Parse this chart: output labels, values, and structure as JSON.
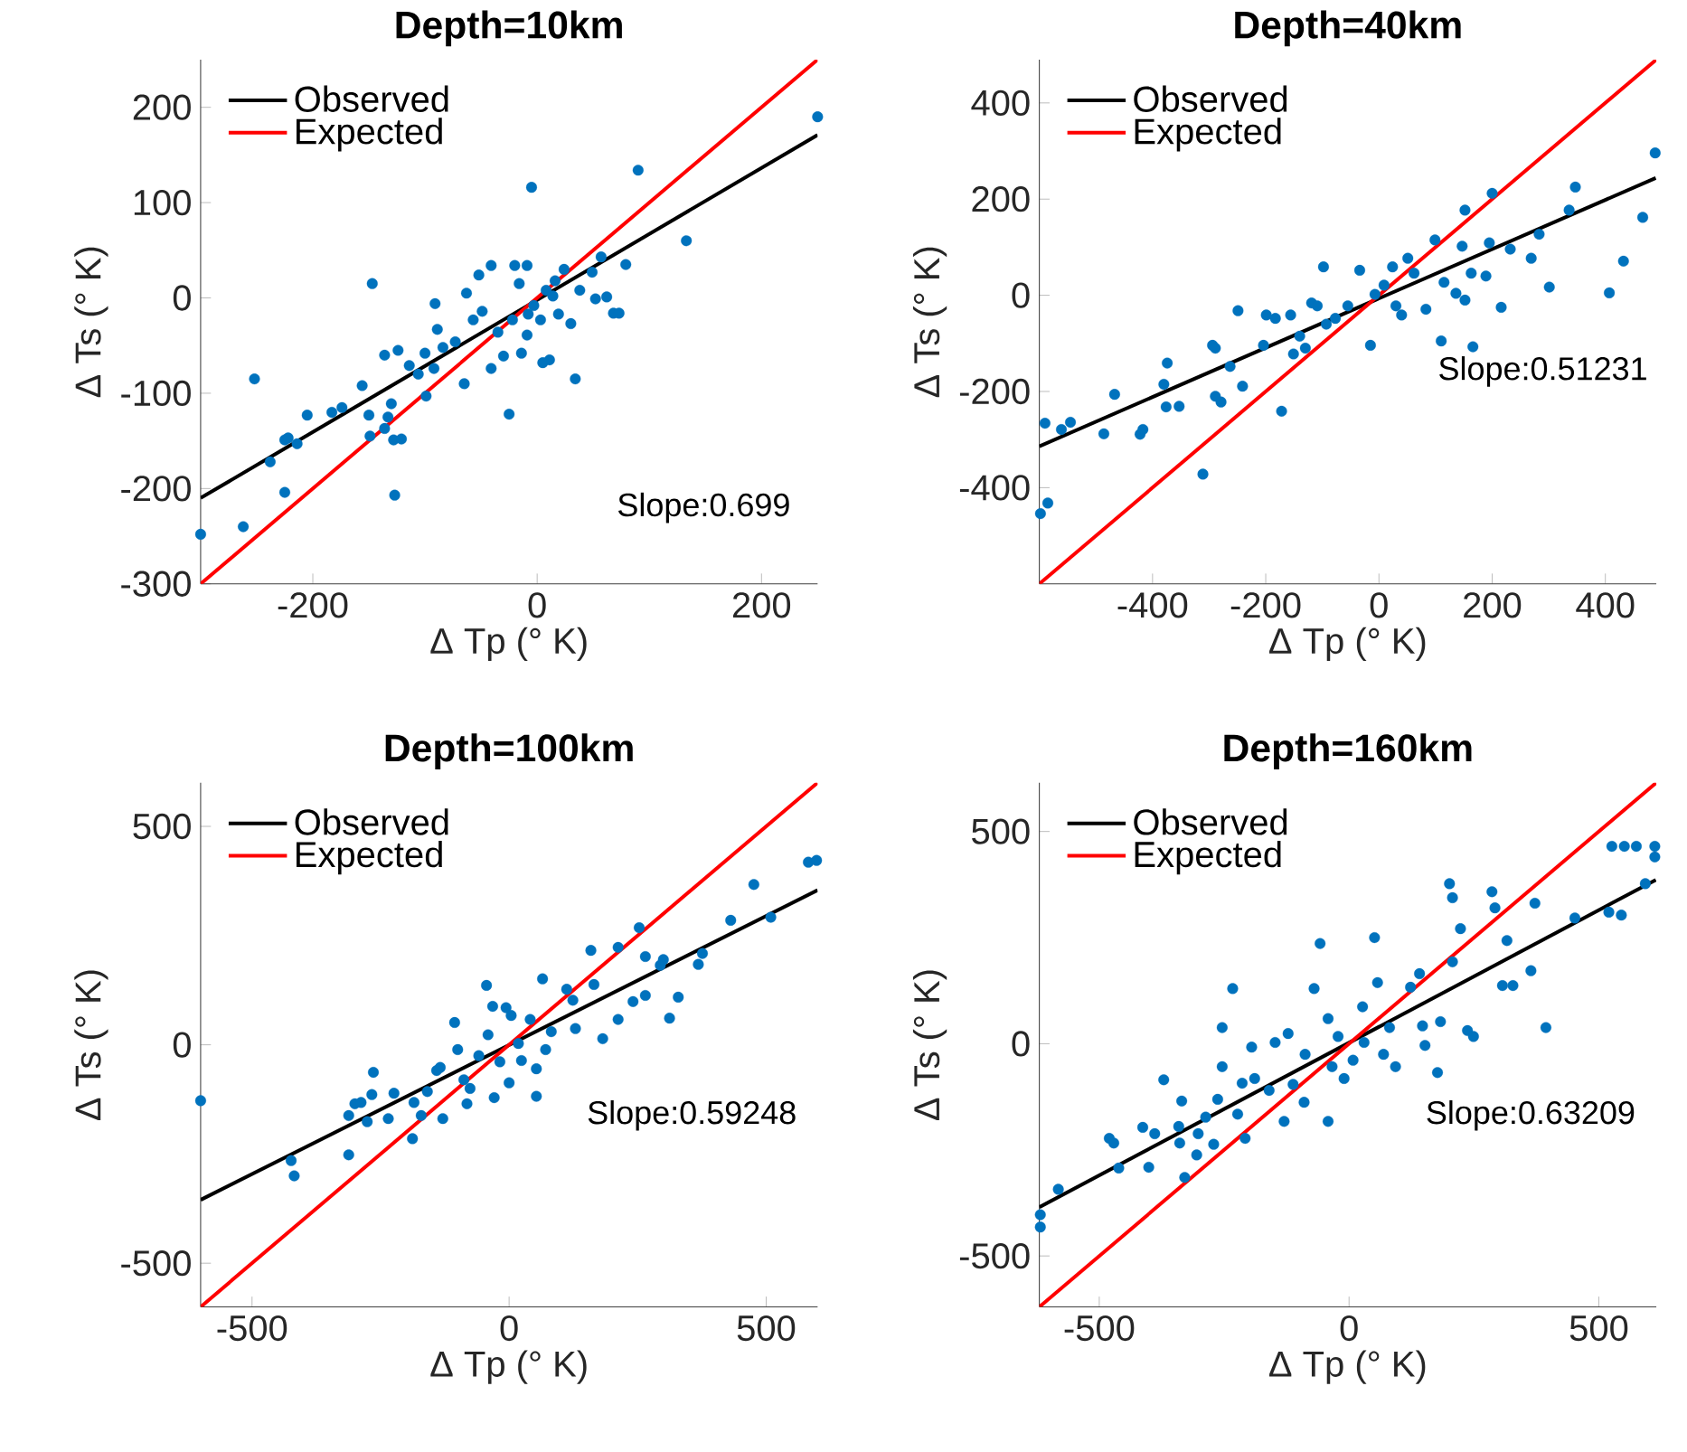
{
  "chart_data": [
    {
      "type": "scatter",
      "title": "Depth=10km",
      "xlabel": "Δ Tp (° K)",
      "ylabel": "Δ Ts (° K)",
      "xlim": [
        -300,
        250
      ],
      "ylim": [
        -300,
        250
      ],
      "xticks": [
        -200,
        0,
        200
      ],
      "yticks": [
        -300,
        -200,
        -100,
        0,
        100,
        200
      ],
      "legend": "top left",
      "annotations": [
        "Slope:0.699"
      ],
      "series": [
        {
          "marker": "circle",
          "color": "#0072bd",
          "x": [
            -300,
            -262,
            -252,
            -238,
            -225,
            -222,
            -214,
            -225,
            -205,
            -183,
            -174,
            -156,
            -150,
            -147,
            -136,
            -130,
            -133,
            -136,
            -149,
            -128,
            -121,
            -127,
            -124,
            -114,
            -106,
            -99,
            -100,
            -92,
            -91,
            -89,
            -84,
            -73,
            -65,
            -63,
            -57,
            -52,
            -49,
            -41,
            -41,
            -35,
            -30,
            -25,
            -22,
            -20,
            -16,
            -14,
            -9,
            -9,
            -5,
            -3,
            3,
            5,
            11,
            14,
            19,
            24,
            30,
            34,
            38,
            49,
            52,
            57,
            62,
            68,
            73,
            79,
            90,
            133,
            250,
            8,
            16,
            -8
          ],
          "values": [
            -248,
            -240,
            -85,
            -172,
            -149,
            -147,
            -153,
            -204,
            -123,
            -120,
            -115,
            -92,
            -123,
            15,
            -60,
            -111,
            -125,
            -137,
            -145,
            -149,
            -148,
            -207,
            -55,
            -71,
            -80,
            -103,
            -58,
            -74,
            -6,
            -33,
            -52,
            -46,
            -90,
            5,
            -23,
            24,
            -14,
            34,
            -74,
            -36,
            -61,
            -122,
            -23,
            34,
            15,
            -58,
            34,
            -39,
            116,
            -8,
            -23,
            -68,
            -65,
            2,
            -17,
            30,
            -27,
            -85,
            8,
            27,
            -1,
            43,
            1,
            -16,
            -16,
            35,
            134,
            60,
            190,
            8,
            18,
            -17
          ]
        },
        {
          "name": "Observed",
          "type": "line",
          "marker": "none",
          "color": "#000000",
          "x": [
            -300,
            250
          ],
          "values": [
            -210,
            171
          ]
        },
        {
          "name": "Expected",
          "type": "line",
          "marker": "none",
          "color": "#ff0000",
          "x": [
            -300,
            250
          ],
          "values": [
            -300,
            250
          ]
        }
      ]
    },
    {
      "type": "scatter",
      "title": "Depth=40km",
      "xlabel": "Δ Tp (° K)",
      "ylabel": "Δ Ts (° K)",
      "xlim": [
        -600,
        490
      ],
      "ylim": [
        -600,
        490
      ],
      "xticks": [
        -400,
        -200,
        0,
        200,
        400
      ],
      "yticks": [
        -400,
        -200,
        0,
        200,
        400
      ],
      "legend": "top left",
      "annotations": [
        "Slope:0.51231"
      ],
      "series": [
        {
          "marker": "circle",
          "color": "#0072bd",
          "x": [
            -598,
            -585,
            -590,
            -561,
            -545,
            -486,
            -467,
            -422,
            -417,
            -380,
            -374,
            -376,
            -353,
            -311,
            -294,
            -289,
            -289,
            -279,
            -263,
            -241,
            -249,
            -204,
            -199,
            -183,
            -172,
            -156,
            -151,
            -140,
            -130,
            -119,
            -109,
            -98,
            -93,
            -77,
            -55,
            -34,
            -15,
            -7,
            9,
            24,
            30,
            40,
            51,
            62,
            83,
            99,
            110,
            115,
            136,
            152,
            147,
            152,
            163,
            166,
            189,
            195,
            200,
            216,
            232,
            269,
            283,
            301,
            336,
            347,
            407,
            432,
            466,
            488
          ],
          "values": [
            -454,
            -432,
            -266,
            -279,
            -264,
            -288,
            -206,
            -289,
            -279,
            -185,
            -141,
            -232,
            -231,
            -372,
            -104,
            -110,
            -210,
            -222,
            -148,
            -189,
            -32,
            -104,
            -41,
            -48,
            -241,
            -41,
            -122,
            -85,
            -110,
            -16,
            -22,
            59,
            -60,
            -48,
            -22,
            52,
            -104,
            2,
            21,
            59,
            -22,
            -41,
            77,
            46,
            -29,
            115,
            -95,
            27,
            4,
            -10,
            102,
            177,
            46,
            -107,
            40,
            109,
            212,
            -25,
            96,
            77,
            127,
            17,
            177,
            225,
            5,
            71,
            162,
            296
          ]
        },
        {
          "name": "Observed",
          "type": "line",
          "marker": "none",
          "color": "#000000",
          "x": [
            -600,
            489
          ],
          "values": [
            -314,
            244
          ]
        },
        {
          "name": "Expected",
          "type": "line",
          "marker": "none",
          "color": "#ff0000",
          "x": [
            -600,
            490
          ],
          "values": [
            -600,
            490
          ]
        }
      ]
    },
    {
      "type": "scatter",
      "title": "Depth=100km",
      "xlabel": "Δ Tp (° K)",
      "ylabel": "Δ Ts (° K)",
      "xlim": [
        -600,
        600
      ],
      "ylim": [
        -600,
        600
      ],
      "xticks": [
        -500,
        0,
        500
      ],
      "yticks": [
        -500,
        0,
        500
      ],
      "legend": "top left",
      "annotations": [
        "Slope:0.59248"
      ],
      "series": [
        {
          "marker": "circle",
          "color": "#0072bd",
          "x": [
            -600,
            -424,
            -418,
            -312,
            -312,
            -300,
            -288,
            -267,
            -264,
            -276,
            -235,
            -224,
            -188,
            -185,
            -171,
            -159,
            -141,
            -134,
            -129,
            -106,
            -100,
            -88,
            -82,
            -76,
            -59,
            -44,
            -41,
            -32,
            -29,
            -18,
            -6,
            4,
            0,
            18,
            24,
            41,
            53,
            53,
            65,
            71,
            82,
            112,
            124,
            129,
            159,
            165,
            182,
            212,
            212,
            241,
            265,
            253,
            265,
            294,
            300,
            312,
            329,
            368,
            376,
            431,
            476,
            509,
            582,
            598
          ],
          "values": [
            -128,
            -265,
            -300,
            -252,
            -162,
            -135,
            -132,
            -114,
            -63,
            -176,
            -169,
            -111,
            -215,
            -132,
            -162,
            -107,
            -59,
            -52,
            -169,
            51,
            -11,
            -80,
            -135,
            -100,
            -25,
            136,
            23,
            88,
            -121,
            -39,
            85,
            67,
            -87,
            3,
            -36,
            58,
            -118,
            -55,
            151,
            -11,
            30,
            127,
            102,
            37,
            216,
            138,
            14,
            223,
            58,
            99,
            113,
            268,
            202,
            182,
            195,
            61,
            109,
            184,
            209,
            285,
            367,
            292,
            418,
            422
          ]
        },
        {
          "name": "Observed",
          "type": "line",
          "marker": "none",
          "color": "#000000",
          "x": [
            -600,
            600
          ],
          "values": [
            -355,
            354
          ]
        },
        {
          "name": "Expected",
          "type": "line",
          "marker": "none",
          "color": "#ff0000",
          "x": [
            -600,
            600
          ],
          "values": [
            -600,
            600
          ]
        }
      ]
    },
    {
      "type": "scatter",
      "title": "Depth=160km",
      "xlabel": "Δ Tp (° K)",
      "ylabel": "Δ Ts (° K)",
      "xlim": [
        -620,
        615
      ],
      "ylim": [
        -620,
        615
      ],
      "xticks": [
        -500,
        0,
        500
      ],
      "yticks": [
        -500,
        0,
        500
      ],
      "legend": "top left",
      "annotations": [
        "Slope:0.63209"
      ],
      "series": [
        {
          "marker": "circle",
          "color": "#0072bd",
          "x": [
            -618,
            -618,
            -582,
            -480,
            -471,
            -461,
            -413,
            -401,
            -389,
            -371,
            -341,
            -335,
            -339,
            -329,
            -305,
            -302,
            -287,
            -271,
            -263,
            -254,
            -254,
            -233,
            -223,
            -214,
            -208,
            -195,
            -189,
            -160,
            -148,
            -130,
            -122,
            -112,
            -90,
            -88,
            -70,
            -58,
            -42,
            -42,
            -34,
            -22,
            -10,
            8,
            27,
            30,
            51,
            57,
            69,
            81,
            93,
            123,
            141,
            147,
            152,
            177,
            183,
            201,
            207,
            207,
            223,
            237,
            249,
            286,
            292,
            307,
            328,
            316,
            364,
            372,
            394,
            452,
            520,
            545,
            526,
            551,
            575,
            593,
            612,
            612
          ],
          "values": [
            -403,
            -432,
            -343,
            -223,
            -234,
            -293,
            -197,
            -291,
            -212,
            -85,
            -195,
            -135,
            -234,
            -315,
            -262,
            -212,
            -173,
            -237,
            -131,
            -54,
            38,
            130,
            -166,
            -93,
            -223,
            -8,
            -82,
            -110,
            3,
            -183,
            24,
            -96,
            -138,
            -25,
            130,
            236,
            -183,
            59,
            -54,
            17,
            -82,
            -39,
            87,
            3,
            250,
            144,
            -25,
            38,
            -54,
            133,
            165,
            42,
            -4,
            -68,
            52,
            377,
            344,
            193,
            271,
            31,
            17,
            358,
            320,
            137,
            137,
            243,
            172,
            331,
            38,
            296,
            310,
            303,
            465,
            465,
            465,
            377,
            465,
            440
          ]
        },
        {
          "name": "Observed",
          "type": "line",
          "marker": "none",
          "color": "#000000",
          "x": [
            -620,
            614
          ],
          "values": [
            -385,
            386
          ]
        },
        {
          "name": "Expected",
          "type": "line",
          "marker": "none",
          "color": "#ff0000",
          "x": [
            -620,
            615
          ],
          "values": [
            -620,
            615
          ]
        }
      ]
    }
  ]
}
